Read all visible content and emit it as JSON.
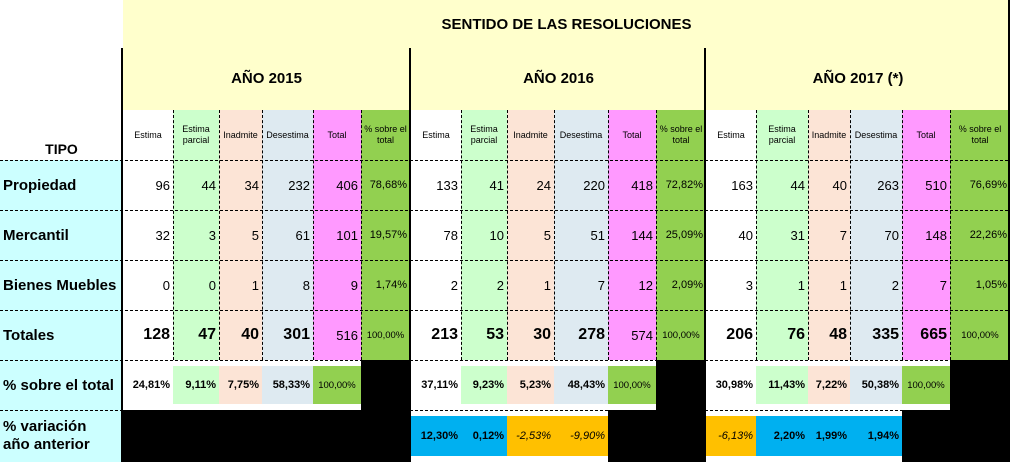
{
  "title": "SENTIDO DE LAS RESOLUCIONES",
  "tipo_label": "TIPO",
  "years": [
    "AÑO 2015",
    "AÑO 2016",
    "AÑO 2017 (*)"
  ],
  "columns": [
    "Estima",
    "Estima parcial",
    "Inadmite",
    "Desestima",
    "Total",
    "% sobre el total"
  ],
  "rows": [
    {
      "label": "Propiedad",
      "y2015": [
        "96",
        "44",
        "34",
        "232",
        "406",
        "78,68%"
      ],
      "y2016": [
        "133",
        "41",
        "24",
        "220",
        "418",
        "72,82%"
      ],
      "y2017": [
        "163",
        "44",
        "40",
        "263",
        "510",
        "76,69%"
      ]
    },
    {
      "label": "Mercantil",
      "y2015": [
        "32",
        "3",
        "5",
        "61",
        "101",
        "19,57%"
      ],
      "y2016": [
        "78",
        "10",
        "5",
        "51",
        "144",
        "25,09%"
      ],
      "y2017": [
        "40",
        "31",
        "7",
        "70",
        "148",
        "22,26%"
      ]
    },
    {
      "label": "Bienes Muebles",
      "y2015": [
        "0",
        "0",
        "1",
        "8",
        "9",
        "1,74%"
      ],
      "y2016": [
        "2",
        "2",
        "1",
        "7",
        "12",
        "2,09%"
      ],
      "y2017": [
        "3",
        "1",
        "1",
        "2",
        "7",
        "1,05%"
      ]
    }
  ],
  "totales": {
    "label": "Totales",
    "y2015": [
      "128",
      "47",
      "40",
      "301",
      "516",
      "100,00%"
    ],
    "y2016": [
      "213",
      "53",
      "30",
      "278",
      "574",
      "100,00%"
    ],
    "y2017": [
      "206",
      "76",
      "48",
      "335",
      "665",
      "100,00%"
    ]
  },
  "pct_total": {
    "label": "% sobre el total",
    "y2015": [
      "24,81%",
      "9,11%",
      "7,75%",
      "58,33%",
      "100,00%"
    ],
    "y2016": [
      "37,11%",
      "9,23%",
      "5,23%",
      "48,43%",
      "100,00%"
    ],
    "y2017": [
      "30,98%",
      "11,43%",
      "7,22%",
      "50,38%",
      "100,00%"
    ]
  },
  "variacion": {
    "label_line1": "% variación",
    "label_line2": "año anterior",
    "y2016": [
      "12,30%",
      "0,12%",
      "-2,53%",
      "-9,90%"
    ],
    "y2017": [
      "-6,13%",
      "2,20%",
      "1,99%",
      "1,94%"
    ]
  },
  "colors": {
    "header_yellow": "#ffffcc",
    "label_cyan": "#ccffff",
    "estima_parcial": "#ccffcc",
    "inadmite": "#fce4d6",
    "desestima": "#deeaf1",
    "total": "#ff99ff",
    "pct_green": "#92d050",
    "variation_up": "#00b0f0",
    "variation_down": "#ffc000"
  }
}
